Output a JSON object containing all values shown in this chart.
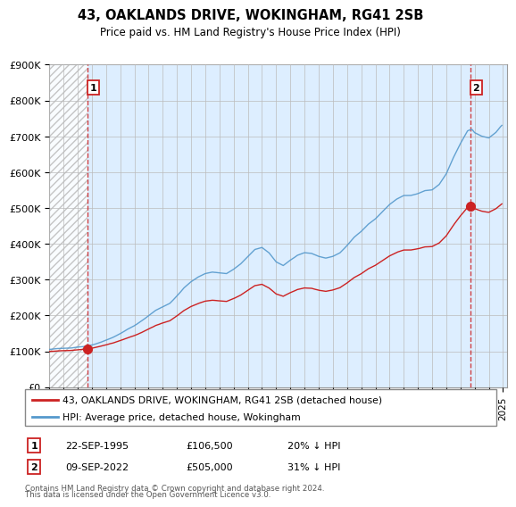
{
  "title": "43, OAKLANDS DRIVE, WOKINGHAM, RG41 2SB",
  "subtitle": "Price paid vs. HM Land Registry's House Price Index (HPI)",
  "sale1_date": "22-SEP-1995",
  "sale1_price": 106500,
  "sale1_label": "20% ↓ HPI",
  "sale2_date": "09-SEP-2022",
  "sale2_price": 505000,
  "sale2_label": "31% ↓ HPI",
  "legend1": "43, OAKLANDS DRIVE, WOKINGHAM, RG41 2SB (detached house)",
  "legend2": "HPI: Average price, detached house, Wokingham",
  "footer1": "Contains HM Land Registry data © Crown copyright and database right 2024.",
  "footer2": "This data is licensed under the Open Government Licence v3.0.",
  "hpi_color": "#5599cc",
  "price_color": "#cc2222",
  "plot_bg_color": "#ddeeff",
  "hatch_color": "#bbbbbb",
  "ylim": [
    0,
    900000
  ],
  "yticks": [
    0,
    100000,
    200000,
    300000,
    400000,
    500000,
    600000,
    700000,
    800000,
    900000
  ],
  "xlim_start": 1993.0,
  "xlim_end": 2025.3,
  "sale1_x": 1995.72,
  "sale2_x": 2022.7
}
